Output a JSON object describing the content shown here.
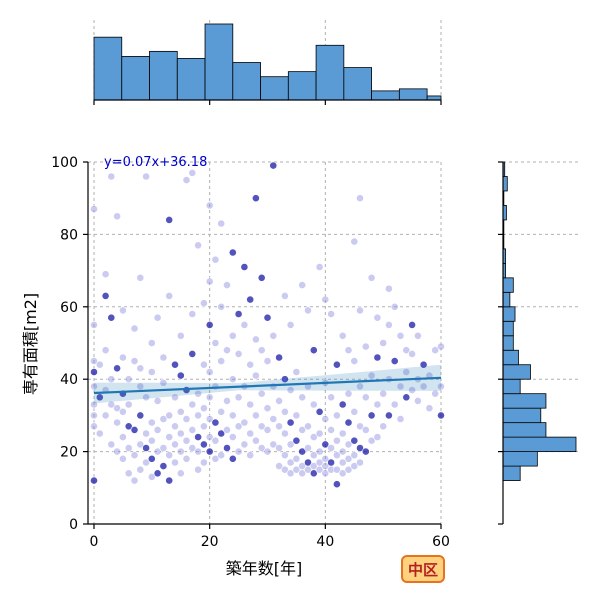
{
  "chart_data": {
    "type": "scatter",
    "xlabel": "築年数[年]",
    "ylabel": "専有面積[m2]",
    "xlim": [
      0,
      60
    ],
    "ylim": [
      0,
      100
    ],
    "xticks": [
      0,
      20,
      40,
      60
    ],
    "yticks": [
      0,
      20,
      40,
      60,
      80,
      100
    ],
    "grid": true,
    "regression": {
      "slope": 0.07,
      "intercept": 36.18,
      "label": "y=0.07x+36.18",
      "color": "#1f77b4"
    },
    "badge": "中区",
    "colors": {
      "points_light": "#8c8ce0",
      "points_dark": "#1a1aa8",
      "hist": "#5a9bd5",
      "badge_bg": "#ffd27f",
      "badge_border": "#e8731e"
    },
    "x_hist": {
      "bin_edges": [
        0,
        4.8,
        9.6,
        14.4,
        19.2,
        24,
        28.8,
        33.6,
        38.4,
        43.2,
        48,
        52.8,
        57.6,
        60
      ],
      "counts": [
        62,
        43,
        48,
        41,
        75,
        37,
        23,
        28,
        54,
        32,
        9,
        11,
        4
      ]
    },
    "y_hist": {
      "bin_edges": [
        12,
        16,
        20,
        24,
        28,
        32,
        36,
        40,
        44,
        48,
        52,
        56,
        60,
        64,
        68,
        72,
        76,
        80,
        84,
        88,
        92,
        96,
        100
      ],
      "counts": [
        20,
        40,
        85,
        50,
        44,
        50,
        20,
        32,
        18,
        12,
        12,
        14,
        8,
        12,
        3,
        3,
        1,
        1,
        4,
        1,
        5,
        2
      ]
    },
    "points": [
      [
        0,
        12
      ],
      [
        0,
        27
      ],
      [
        0,
        30
      ],
      [
        0,
        33
      ],
      [
        0,
        38
      ],
      [
        0,
        42
      ],
      [
        0,
        45
      ],
      [
        0,
        55
      ],
      [
        0,
        87
      ],
      [
        1,
        25
      ],
      [
        1,
        35
      ],
      [
        1,
        44
      ],
      [
        2,
        30
      ],
      [
        2,
        37
      ],
      [
        2,
        48
      ],
      [
        2,
        63
      ],
      [
        2,
        69
      ],
      [
        3,
        22
      ],
      [
        3,
        33
      ],
      [
        3,
        40
      ],
      [
        3,
        57
      ],
      [
        3,
        96
      ],
      [
        4,
        20
      ],
      [
        4,
        28
      ],
      [
        4,
        32
      ],
      [
        4,
        43
      ],
      [
        4,
        85
      ],
      [
        5,
        18
      ],
      [
        5,
        24
      ],
      [
        5,
        31
      ],
      [
        5,
        36
      ],
      [
        5,
        46
      ],
      [
        5,
        59
      ],
      [
        6,
        14
      ],
      [
        6,
        21
      ],
      [
        6,
        27
      ],
      [
        6,
        33
      ],
      [
        6,
        40
      ],
      [
        7,
        12
      ],
      [
        7,
        19
      ],
      [
        7,
        26
      ],
      [
        7,
        45
      ],
      [
        7,
        54
      ],
      [
        8,
        15
      ],
      [
        8,
        22
      ],
      [
        8,
        30
      ],
      [
        8,
        38
      ],
      [
        8,
        43
      ],
      [
        8,
        68
      ],
      [
        9,
        17
      ],
      [
        9,
        21
      ],
      [
        9,
        25
      ],
      [
        9,
        35
      ],
      [
        9,
        96
      ],
      [
        10,
        13
      ],
      [
        10,
        18
      ],
      [
        10,
        23
      ],
      [
        10,
        28
      ],
      [
        10,
        42
      ],
      [
        10,
        50
      ],
      [
        11,
        14
      ],
      [
        11,
        20
      ],
      [
        11,
        26
      ],
      [
        11,
        34
      ],
      [
        11,
        57
      ],
      [
        12,
        16
      ],
      [
        12,
        21
      ],
      [
        12,
        29
      ],
      [
        12,
        39
      ],
      [
        12,
        46
      ],
      [
        13,
        12
      ],
      [
        13,
        19
      ],
      [
        13,
        24
      ],
      [
        13,
        30
      ],
      [
        13,
        63
      ],
      [
        13,
        84
      ],
      [
        14,
        17
      ],
      [
        14,
        22
      ],
      [
        14,
        27
      ],
      [
        14,
        35
      ],
      [
        14,
        44
      ],
      [
        15,
        14
      ],
      [
        15,
        20
      ],
      [
        15,
        25
      ],
      [
        15,
        31
      ],
      [
        15,
        41
      ],
      [
        15,
        52
      ],
      [
        16,
        18
      ],
      [
        16,
        23
      ],
      [
        16,
        29
      ],
      [
        16,
        37
      ],
      [
        16,
        95
      ],
      [
        17,
        21
      ],
      [
        17,
        26
      ],
      [
        17,
        33
      ],
      [
        17,
        47
      ],
      [
        17,
        58
      ],
      [
        17,
        97
      ],
      [
        18,
        15
      ],
      [
        18,
        20
      ],
      [
        18,
        24
      ],
      [
        18,
        30
      ],
      [
        18,
        36
      ],
      [
        18,
        77
      ],
      [
        19,
        17
      ],
      [
        19,
        22
      ],
      [
        19,
        27
      ],
      [
        19,
        32
      ],
      [
        19,
        44
      ],
      [
        19,
        61
      ],
      [
        20,
        20
      ],
      [
        20,
        24
      ],
      [
        20,
        29
      ],
      [
        20,
        35
      ],
      [
        20,
        42
      ],
      [
        20,
        55
      ],
      [
        20,
        67
      ],
      [
        20,
        88
      ],
      [
        21,
        18
      ],
      [
        21,
        23
      ],
      [
        21,
        28
      ],
      [
        21,
        38
      ],
      [
        21,
        50
      ],
      [
        21,
        73
      ],
      [
        22,
        19
      ],
      [
        22,
        25
      ],
      [
        22,
        31
      ],
      [
        22,
        45
      ],
      [
        22,
        60
      ],
      [
        22,
        83
      ],
      [
        23,
        21
      ],
      [
        23,
        26
      ],
      [
        23,
        34
      ],
      [
        23,
        48
      ],
      [
        23,
        66
      ],
      [
        24,
        18
      ],
      [
        24,
        24
      ],
      [
        24,
        30
      ],
      [
        24,
        40
      ],
      [
        24,
        52
      ],
      [
        24,
        75
      ],
      [
        25,
        20
      ],
      [
        25,
        27
      ],
      [
        25,
        35
      ],
      [
        25,
        47
      ],
      [
        25,
        58
      ],
      [
        26,
        22
      ],
      [
        26,
        28
      ],
      [
        26,
        38
      ],
      [
        26,
        55
      ],
      [
        26,
        71
      ],
      [
        27,
        19
      ],
      [
        27,
        25
      ],
      [
        27,
        33
      ],
      [
        27,
        44
      ],
      [
        27,
        62
      ],
      [
        28,
        23
      ],
      [
        28,
        30
      ],
      [
        28,
        41
      ],
      [
        28,
        51
      ],
      [
        28,
        90
      ],
      [
        29,
        21
      ],
      [
        29,
        27
      ],
      [
        29,
        36
      ],
      [
        29,
        48
      ],
      [
        29,
        68
      ],
      [
        30,
        20
      ],
      [
        30,
        26
      ],
      [
        30,
        32
      ],
      [
        30,
        45
      ],
      [
        30,
        57
      ],
      [
        31,
        22
      ],
      [
        31,
        29
      ],
      [
        31,
        38
      ],
      [
        31,
        52
      ],
      [
        31,
        99
      ],
      [
        32,
        16
      ],
      [
        32,
        21
      ],
      [
        32,
        27
      ],
      [
        32,
        34
      ],
      [
        32,
        46
      ],
      [
        33,
        15
      ],
      [
        33,
        19
      ],
      [
        33,
        25
      ],
      [
        33,
        31
      ],
      [
        33,
        40
      ],
      [
        33,
        63
      ],
      [
        34,
        14
      ],
      [
        34,
        17
      ],
      [
        34,
        22
      ],
      [
        34,
        28
      ],
      [
        34,
        37
      ],
      [
        34,
        55
      ],
      [
        35,
        15
      ],
      [
        35,
        18
      ],
      [
        35,
        23
      ],
      [
        35,
        30
      ],
      [
        35,
        42
      ],
      [
        36,
        14
      ],
      [
        36,
        16
      ],
      [
        36,
        20
      ],
      [
        36,
        26
      ],
      [
        36,
        35
      ],
      [
        36,
        66
      ],
      [
        37,
        15
      ],
      [
        37,
        17
      ],
      [
        37,
        21
      ],
      [
        37,
        27
      ],
      [
        37,
        38
      ],
      [
        37,
        59
      ],
      [
        38,
        14
      ],
      [
        38,
        16
      ],
      [
        38,
        19
      ],
      [
        38,
        24
      ],
      [
        38,
        33
      ],
      [
        38,
        48
      ],
      [
        39,
        15
      ],
      [
        39,
        17
      ],
      [
        39,
        20
      ],
      [
        39,
        25
      ],
      [
        39,
        31
      ],
      [
        39,
        71
      ],
      [
        40,
        14
      ],
      [
        40,
        16
      ],
      [
        40,
        18
      ],
      [
        40,
        22
      ],
      [
        40,
        29
      ],
      [
        40,
        39
      ],
      [
        40,
        62
      ],
      [
        41,
        15
      ],
      [
        41,
        17
      ],
      [
        41,
        21
      ],
      [
        41,
        26
      ],
      [
        41,
        35
      ],
      [
        41,
        58
      ],
      [
        42,
        11
      ],
      [
        42,
        15
      ],
      [
        42,
        19
      ],
      [
        42,
        23
      ],
      [
        42,
        30
      ],
      [
        42,
        44
      ],
      [
        43,
        14
      ],
      [
        43,
        17
      ],
      [
        43,
        20
      ],
      [
        43,
        25
      ],
      [
        43,
        33
      ],
      [
        43,
        52
      ],
      [
        44,
        15
      ],
      [
        44,
        18
      ],
      [
        44,
        22
      ],
      [
        44,
        28
      ],
      [
        44,
        36
      ],
      [
        44,
        48
      ],
      [
        45,
        16
      ],
      [
        45,
        19
      ],
      [
        45,
        23
      ],
      [
        45,
        31
      ],
      [
        45,
        45
      ],
      [
        45,
        78
      ],
      [
        46,
        17
      ],
      [
        46,
        21
      ],
      [
        46,
        27
      ],
      [
        46,
        38
      ],
      [
        46,
        59
      ],
      [
        46,
        90
      ],
      [
        47,
        20
      ],
      [
        47,
        26
      ],
      [
        47,
        35
      ],
      [
        47,
        49
      ],
      [
        48,
        23
      ],
      [
        48,
        30
      ],
      [
        48,
        41
      ],
      [
        48,
        68
      ],
      [
        49,
        24
      ],
      [
        49,
        33
      ],
      [
        49,
        46
      ],
      [
        49,
        57
      ],
      [
        50,
        27
      ],
      [
        50,
        36
      ],
      [
        50,
        50
      ],
      [
        51,
        30
      ],
      [
        51,
        40
      ],
      [
        51,
        55
      ],
      [
        51,
        65
      ],
      [
        52,
        33
      ],
      [
        52,
        45
      ],
      [
        52,
        60
      ],
      [
        53,
        29
      ],
      [
        53,
        38
      ],
      [
        53,
        52
      ],
      [
        54,
        35
      ],
      [
        54,
        42
      ],
      [
        54,
        48
      ],
      [
        55,
        37
      ],
      [
        55,
        47
      ],
      [
        55,
        55
      ],
      [
        56,
        34
      ],
      [
        56,
        40
      ],
      [
        56,
        52
      ],
      [
        57,
        38
      ],
      [
        57,
        44
      ],
      [
        58,
        32
      ],
      [
        58,
        41
      ],
      [
        59,
        36
      ],
      [
        59,
        48
      ],
      [
        60,
        30
      ],
      [
        60,
        38
      ],
      [
        60,
        49
      ]
    ]
  }
}
